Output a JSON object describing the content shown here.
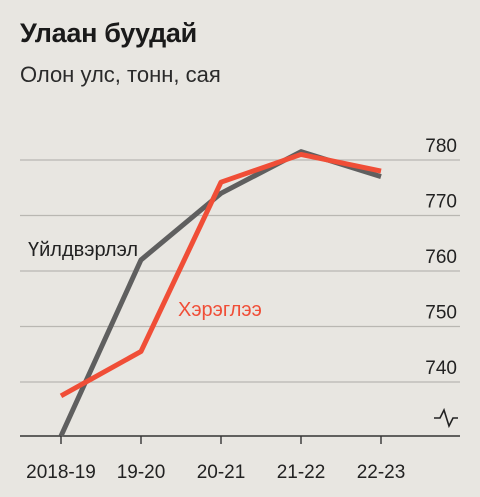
{
  "title": "Улаан буудай",
  "subtitle": "Олон улс, тонн, сая",
  "chart_data": {
    "type": "line",
    "x": [
      "2018-19",
      "19-20",
      "20-21",
      "21-22",
      "22-23"
    ],
    "ylim": [
      730,
      785
    ],
    "y_ticks": [
      740,
      750,
      760,
      770,
      780
    ],
    "y_axis_position": "right",
    "y_axis_break": true,
    "grid": true,
    "series": [
      {
        "name": "Үйлдвэрлэл",
        "color": "#5f5f5f",
        "values": [
          730,
          762,
          774,
          781.5,
          777
        ]
      },
      {
        "name": "Хэрэглээ",
        "color": "#f04e37",
        "values": [
          737.5,
          745.5,
          776,
          781,
          778
        ]
      }
    ]
  }
}
